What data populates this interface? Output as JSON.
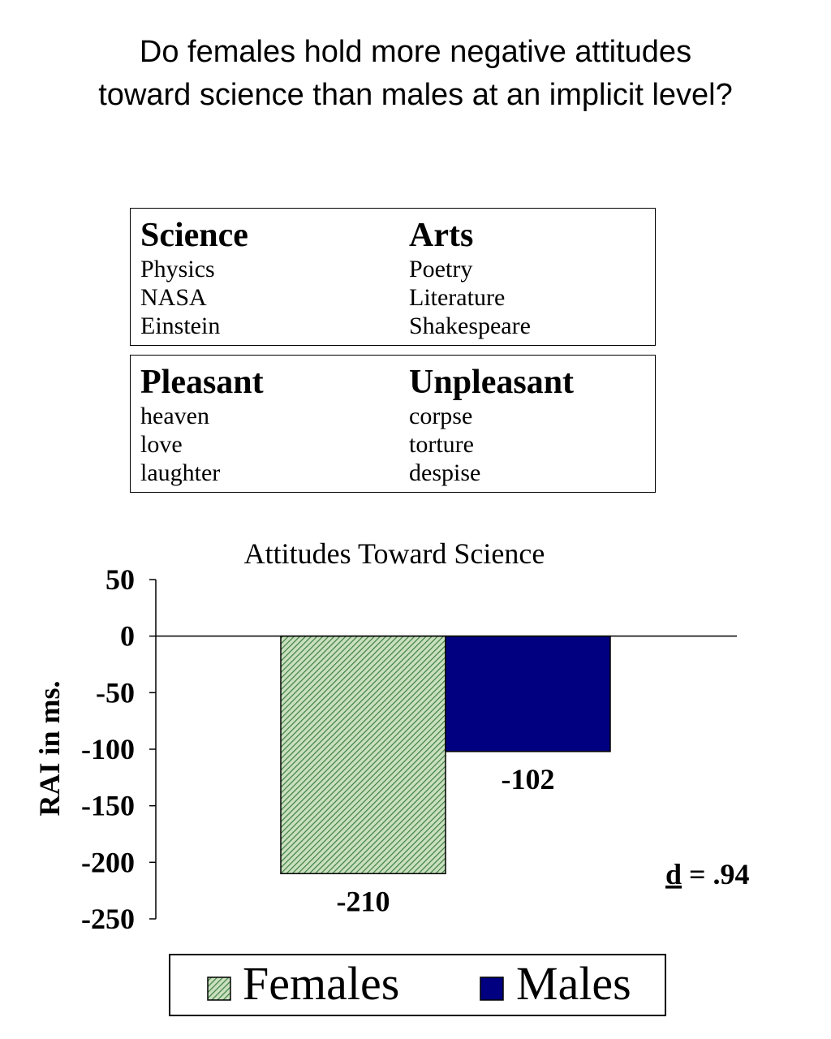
{
  "title": "Do females hold more negative attitudes toward science than males at an implicit level?",
  "box1": {
    "left": {
      "heading": "Science",
      "items": [
        "Physics",
        "NASA",
        "Einstein"
      ]
    },
    "right": {
      "heading": "Arts",
      "items": [
        "Poetry",
        "Literature",
        "Shakespeare"
      ]
    }
  },
  "box2": {
    "left": {
      "heading": "Pleasant",
      "items": [
        "heaven",
        "love",
        "laughter"
      ]
    },
    "right": {
      "heading": "Unpleasant",
      "items": [
        "corpse",
        "torture",
        "despise"
      ]
    }
  },
  "chart_data": {
    "type": "bar",
    "title": "Attitudes Toward Science",
    "xlabel": "",
    "ylabel": "RAI in ms.",
    "ylim": [
      -250,
      50
    ],
    "yticks": [
      50,
      0,
      -50,
      -100,
      -150,
      -200,
      -250
    ],
    "grid": false,
    "legend_position": "bottom",
    "series": [
      {
        "name": "Females",
        "value": -210,
        "label": "-210",
        "color": "#2e6b2e",
        "pattern": "green-diagonal-hatch"
      },
      {
        "name": "Males",
        "value": -102,
        "label": "-102",
        "color": "#000080",
        "pattern": "solid"
      }
    ],
    "annotation": {
      "symbol": "d",
      "text": " = .94"
    }
  }
}
